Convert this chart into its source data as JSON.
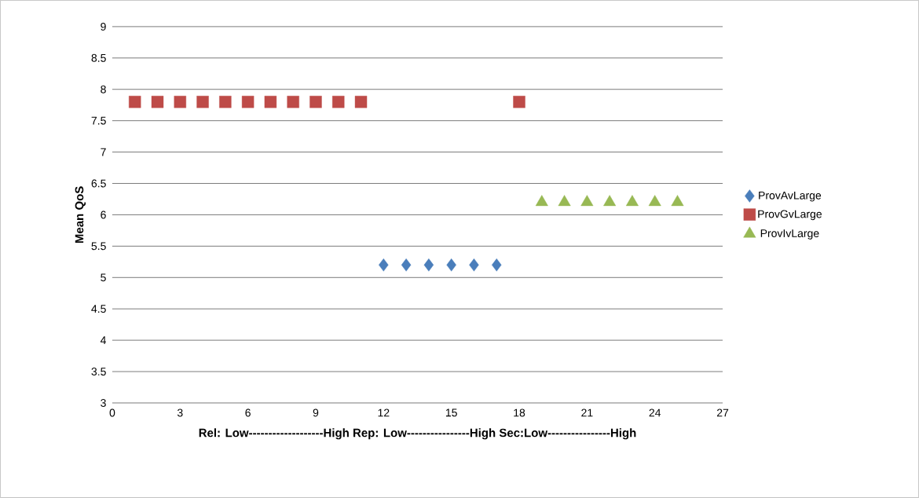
{
  "chart_data": {
    "type": "scatter",
    "ylabel": "Mean QoS",
    "xlabel": "Rel: Low-------------------High Rep: Low----------------High Sec:Low----------------High",
    "xlim": [
      0,
      27
    ],
    "xticks": [
      0,
      3,
      6,
      9,
      12,
      15,
      18,
      21,
      24,
      27
    ],
    "ylim": [
      3,
      9
    ],
    "yticks": [
      3,
      3.5,
      4,
      4.5,
      5,
      5.5,
      6,
      6.5,
      7,
      7.5,
      8,
      8.5,
      9
    ],
    "grid": "y",
    "legend": "right",
    "series": [
      {
        "name": "ProvAvLarge",
        "color": "#4a7ebb",
        "marker": "diamond",
        "x": [
          12,
          13,
          14,
          15,
          16,
          17
        ],
        "values": [
          5.2,
          5.2,
          5.2,
          5.2,
          5.2,
          5.2
        ]
      },
      {
        "name": "ProvGvLarge",
        "color": "#be4b48",
        "marker": "square",
        "x": [
          1,
          2,
          3,
          4,
          5,
          6,
          7,
          8,
          9,
          10,
          11,
          18
        ],
        "values": [
          7.8,
          7.8,
          7.8,
          7.8,
          7.8,
          7.8,
          7.8,
          7.8,
          7.8,
          7.8,
          7.8,
          7.8
        ]
      },
      {
        "name": "ProvIvLarge",
        "color": "#98b954",
        "marker": "triangle",
        "x": [
          19,
          20,
          21,
          22,
          23,
          24,
          25
        ],
        "values": [
          6.2,
          6.2,
          6.2,
          6.2,
          6.2,
          6.2,
          6.2
        ]
      }
    ]
  }
}
